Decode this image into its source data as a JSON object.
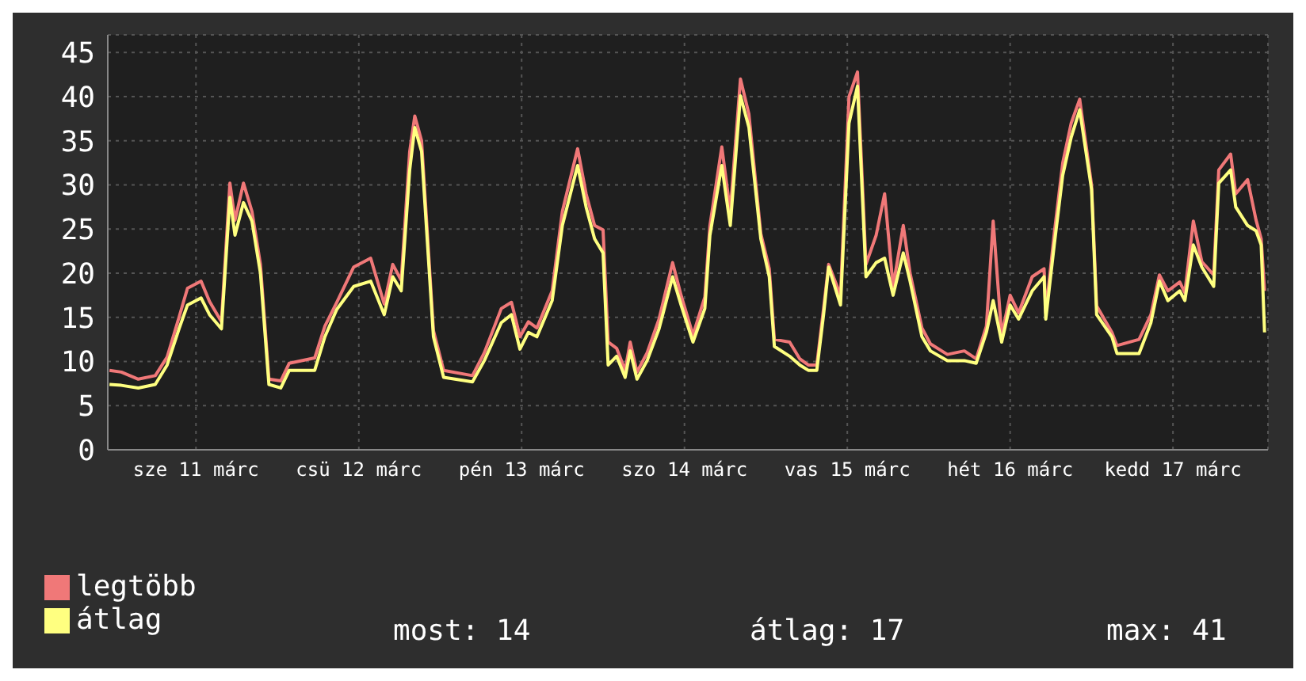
{
  "chart_data": {
    "type": "line",
    "x": [
      "--03-10T23:15",
      "--03-11T01:00",
      "--03-11T03:30",
      "--03-11T06:00",
      "--03-11T07:45",
      "--03-11T09:30",
      "--03-11T10:45",
      "--03-11T12:45",
      "--03-11T14:00",
      "--03-11T15:45",
      "--03-11T17:00",
      "--03-11T17:45",
      "--03-11T19:00",
      "--03-11T20:15",
      "--03-11T21:30",
      "--03-11T22:45",
      "--03-12T00:30",
      "--03-12T01:45",
      "--03-12T05:30",
      "--03-12T07:00",
      "--03-12T08:45",
      "--03-12T11:15",
      "--03-12T13:45",
      "--03-12T15:45",
      "--03-12T17:00",
      "--03-12T18:15",
      "--03-12T19:30",
      "--03-12T20:15",
      "--03-12T21:15",
      "--03-12T23:00",
      "--03-13T00:30",
      "--03-13T04:45",
      "--03-13T06:30",
      "--03-13T09:00",
      "--03-13T10:30",
      "--03-13T11:45",
      "--03-13T13:00",
      "--03-13T14:15",
      "--03-13T16:30",
      "--03-13T18:00",
      "--03-13T20:15",
      "--03-13T21:30",
      "--03-13T22:45",
      "--03-14T00:00",
      "--03-14T00:45",
      "--03-14T02:00",
      "--03-14T03:15",
      "--03-14T04:00",
      "--03-14T05:00",
      "--03-14T06:30",
      "--03-14T08:15",
      "--03-14T10:15",
      "--03-14T11:30",
      "--03-14T13:15",
      "--03-14T15:00",
      "--03-14T15:45",
      "--03-14T17:30",
      "--03-14T18:45",
      "--03-14T20:15",
      "--03-14T21:30",
      "--03-14T23:15",
      "--03-15T00:30",
      "--03-15T01:15",
      "--03-15T03:30",
      "--03-15T05:00",
      "--03-15T06:15",
      "--03-15T07:30",
      "--03-15T08:30",
      "--03-15T09:15",
      "--03-15T11:00",
      "--03-15T12:15",
      "--03-15T13:30",
      "--03-15T14:45",
      "--03-15T16:15",
      "--03-15T17:30",
      "--03-15T18:45",
      "--03-15T20:15",
      "--03-15T21:15",
      "--03-15T23:00",
      "--03-16T00:15",
      "--03-16T02:45",
      "--03-16T05:15",
      "--03-16T07:00",
      "--03-16T08:30",
      "--03-16T09:30",
      "--03-16T10:45",
      "--03-16T12:00",
      "--03-16T13:15",
      "--03-16T15:15",
      "--03-16T17:00",
      "--03-16T17:15",
      "--03-16T18:30",
      "--03-16T19:45",
      "--03-16T21:00",
      "--03-16T22:15",
      "--03-17T00:00",
      "--03-17T00:45",
      "--03-17T03:00",
      "--03-17T03:45",
      "--03-17T07:00",
      "--03-17T08:45",
      "--03-17T10:00",
      "--03-17T11:15",
      "--03-17T13:00",
      "--03-17T13:45",
      "--03-17T15:00",
      "--03-17T16:15",
      "--03-17T18:00",
      "--03-17T18:45",
      "--03-17T20:30",
      "--03-17T21:15",
      "--03-17T23:00",
      "--03-18T00:15",
      "--03-18T01:00",
      "--03-18T01:30"
    ],
    "series": [
      {
        "name": "legtöbb",
        "color": "#f07878",
        "values": [
          9.0,
          8.8,
          8.0,
          8.4,
          10.5,
          15.0,
          18.3,
          19.1,
          16.8,
          14.5,
          30.2,
          26.0,
          30.2,
          27.0,
          21.0,
          8.0,
          7.8,
          9.8,
          10.4,
          14.0,
          16.7,
          20.7,
          21.7,
          16.5,
          21.0,
          19.2,
          33.8,
          37.8,
          35.0,
          13.5,
          9.0,
          8.4,
          11.0,
          16.0,
          16.7,
          12.8,
          14.5,
          13.8,
          18.0,
          27.0,
          34.1,
          29.0,
          25.4,
          24.9,
          12.2,
          11.5,
          9.0,
          12.2,
          8.8,
          11.0,
          14.8,
          21.2,
          17.5,
          13.0,
          17.3,
          25.4,
          34.3,
          27.0,
          42.0,
          38.0,
          24.5,
          20.5,
          12.5,
          12.2,
          10.3,
          9.6,
          9.6,
          16.0,
          21.0,
          17.5,
          40.0,
          42.8,
          21.0,
          24.3,
          29.0,
          18.5,
          25.4,
          20.0,
          13.8,
          12.0,
          10.8,
          11.2,
          10.3,
          14.0,
          25.9,
          13.0,
          17.5,
          15.5,
          19.6,
          20.5,
          15.5,
          24.5,
          32.5,
          37.0,
          39.7,
          30.0,
          16.3,
          13.3,
          11.8,
          12.5,
          15.3,
          19.8,
          18.0,
          19.0,
          17.8,
          25.9,
          21.3,
          19.8,
          31.7,
          33.5,
          29.0,
          30.6,
          26.0,
          23.9,
          18.0
        ]
      },
      {
        "name": "átlag",
        "color": "#ffff80",
        "values": [
          7.4,
          7.3,
          7.0,
          7.4,
          9.6,
          13.7,
          16.4,
          17.2,
          15.3,
          13.7,
          28.6,
          24.3,
          28.0,
          25.9,
          20.0,
          7.4,
          7.0,
          9.0,
          9.0,
          12.8,
          15.9,
          18.5,
          19.1,
          15.3,
          19.6,
          18.0,
          31.7,
          36.5,
          33.8,
          12.8,
          8.2,
          7.7,
          10.1,
          14.4,
          15.3,
          11.4,
          13.3,
          12.8,
          16.9,
          25.4,
          32.2,
          27.5,
          23.9,
          22.3,
          9.6,
          10.6,
          8.2,
          11.2,
          8.0,
          10.1,
          13.7,
          19.6,
          16.4,
          12.2,
          16.0,
          24.3,
          32.2,
          25.4,
          40.1,
          36.5,
          23.9,
          19.6,
          11.7,
          10.6,
          9.6,
          9.0,
          9.0,
          15.3,
          20.7,
          16.4,
          37.0,
          41.2,
          19.6,
          21.2,
          21.7,
          17.5,
          22.3,
          19.1,
          12.8,
          11.2,
          10.1,
          10.1,
          9.8,
          13.3,
          16.9,
          12.2,
          16.4,
          14.8,
          18.0,
          19.6,
          14.8,
          23.2,
          31.1,
          35.4,
          38.5,
          29.5,
          15.3,
          12.8,
          10.9,
          10.9,
          14.4,
          19.1,
          16.9,
          18.0,
          16.9,
          23.2,
          20.7,
          18.5,
          30.2,
          31.7,
          27.5,
          25.4,
          24.8,
          23.2,
          13.3
        ]
      }
    ],
    "xlim": [
      "--03-10T23:00",
      "--03-18T02:00"
    ],
    "xticks": [
      {
        "value": "--03-11T12:00",
        "label": "sze 11 márc"
      },
      {
        "value": "--03-12T12:00",
        "label": "csü 12 márc"
      },
      {
        "value": "--03-13T12:00",
        "label": "pén 13 márc"
      },
      {
        "value": "--03-14T12:00",
        "label": "szo 14 márc"
      },
      {
        "value": "--03-15T12:00",
        "label": "vas 15 márc"
      },
      {
        "value": "--03-16T12:00",
        "label": "hét 16 márc"
      },
      {
        "value": "--03-17T12:00",
        "label": "kedd 17 márc"
      }
    ],
    "ylim": [
      0,
      47
    ],
    "yticks": [
      0,
      5,
      10,
      15,
      20,
      25,
      30,
      35,
      40,
      45
    ],
    "grid": true,
    "legend": "bottom left",
    "marker": "none",
    "line_style": "solid",
    "annotations": [
      "most: 14",
      "átlag: 17",
      "max: 41"
    ]
  }
}
